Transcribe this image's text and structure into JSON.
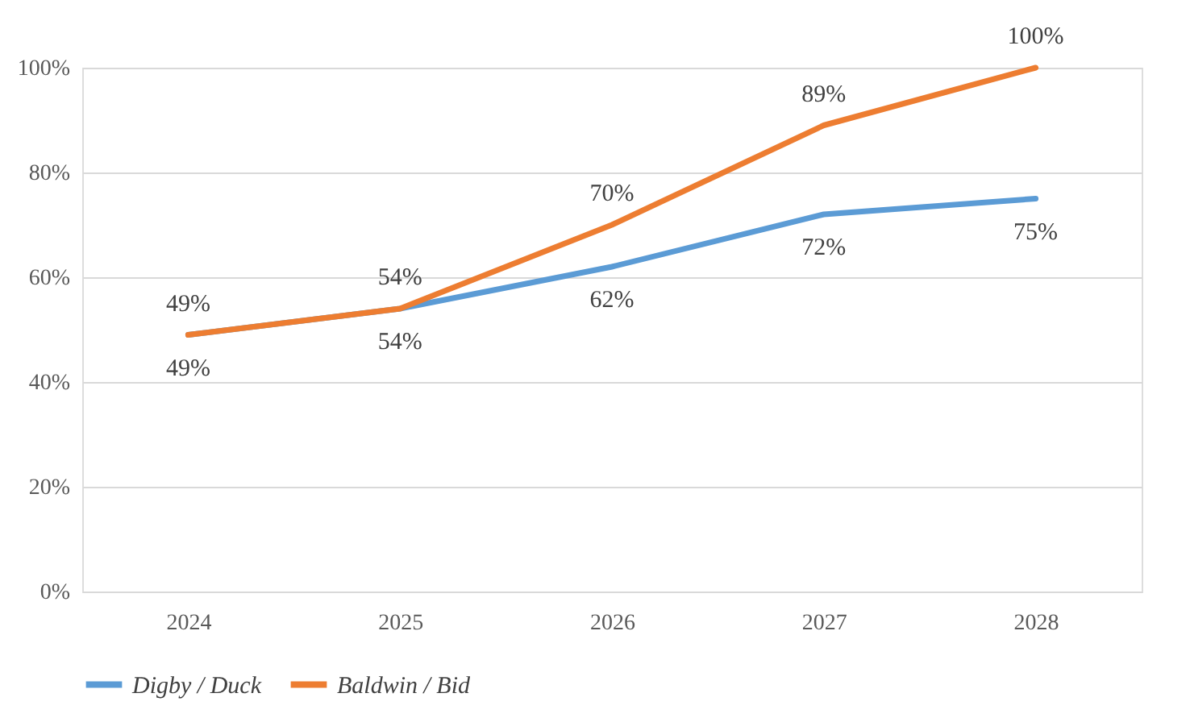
{
  "chart_data": {
    "type": "line",
    "categories": [
      "2024",
      "2025",
      "2026",
      "2027",
      "2028"
    ],
    "series": [
      {
        "name": "Digby / Duck",
        "color": "#5b9bd5",
        "values": [
          49,
          54,
          62,
          72,
          75
        ],
        "value_labels": [
          "49%",
          "54%",
          "62%",
          "72%",
          "75%"
        ]
      },
      {
        "name": "Baldwin / Bid",
        "color": "#ed7d31",
        "values": [
          49,
          54,
          70,
          89,
          100
        ],
        "value_labels": [
          "49%",
          "54%",
          "70%",
          "89%",
          "100%"
        ]
      }
    ],
    "ylim": [
      0,
      100
    ],
    "yticks": [
      {
        "value": 0,
        "label": "0%"
      },
      {
        "value": 20,
        "label": "20%"
      },
      {
        "value": 40,
        "label": "40%"
      },
      {
        "value": 60,
        "label": "60%"
      },
      {
        "value": 80,
        "label": "80%"
      },
      {
        "value": 100,
        "label": "100%"
      }
    ],
    "grid": "y",
    "legend": "bottom",
    "marker": "none",
    "line_style": "solid"
  }
}
